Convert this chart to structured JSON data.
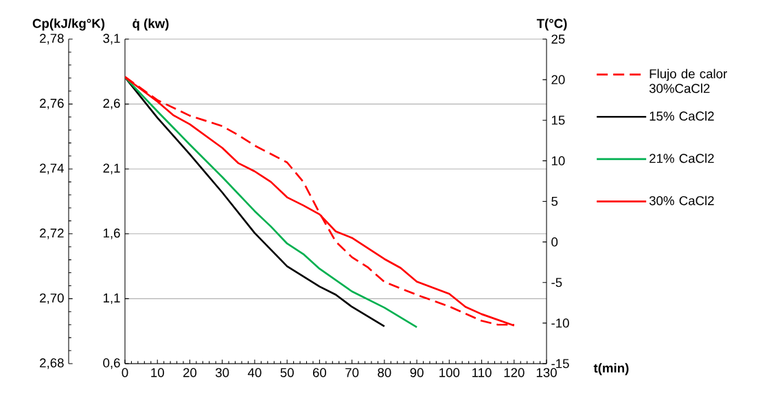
{
  "chart_data": {
    "type": "line",
    "xlabel": "t(min)",
    "ylabel": "q̇ (kw)",
    "y2label": "T(°C)",
    "y3label": "Cp(kJ/kg°K)",
    "xlim": [
      0,
      130
    ],
    "xticks": [
      0,
      10,
      20,
      30,
      40,
      50,
      60,
      70,
      80,
      90,
      100,
      110,
      120,
      130
    ],
    "ylim": [
      0.6,
      3.1
    ],
    "yticks": [
      {
        "value": 0.6,
        "label": "0,6"
      },
      {
        "value": 1.1,
        "label": "1,1"
      },
      {
        "value": 1.6,
        "label": "1,6"
      },
      {
        "value": 2.1,
        "label": "2,1"
      },
      {
        "value": 2.6,
        "label": "2,6"
      },
      {
        "value": 3.1,
        "label": "3,1"
      }
    ],
    "y2lim": [
      -15,
      25
    ],
    "y2ticks": [
      -15,
      -10,
      -5,
      0,
      5,
      10,
      15,
      20,
      25
    ],
    "y3lim": [
      2.68,
      2.78
    ],
    "y3ticks": [
      {
        "value": 2.68,
        "label": "2,68"
      },
      {
        "value": 2.7,
        "label": "2,70"
      },
      {
        "value": 2.72,
        "label": "2,72"
      },
      {
        "value": 2.74,
        "label": "2,74"
      },
      {
        "value": 2.76,
        "label": "2,76"
      },
      {
        "value": 2.78,
        "label": "2,78"
      }
    ],
    "grid": "y",
    "legend": "right",
    "series": [
      {
        "name": "Flujo de calor 30%CaCl2",
        "color": "#ff0000",
        "line_style": "dashed",
        "x": [
          0,
          10,
          20,
          30,
          35,
          40,
          50,
          55,
          60,
          65,
          70,
          75,
          80,
          90,
          100,
          110,
          115,
          120
        ],
        "values": [
          2.81,
          2.63,
          2.51,
          2.43,
          2.36,
          2.28,
          2.15,
          2.0,
          1.76,
          1.54,
          1.42,
          1.34,
          1.23,
          1.13,
          1.04,
          0.93,
          0.9,
          0.9
        ]
      },
      {
        "name": "15% CaCl2",
        "color": "#000000",
        "line_style": "solid",
        "axis": "y2",
        "x": [
          0,
          10,
          20,
          30,
          40,
          50,
          60,
          65,
          70,
          80
        ],
        "values": [
          20.3,
          15.3,
          10.8,
          6.1,
          1.1,
          -3.0,
          -5.5,
          -6.5,
          -8.0,
          -10.4
        ]
      },
      {
        "name": "21% CaCl2",
        "color": "#00b050",
        "line_style": "solid",
        "axis": "y2",
        "x": [
          0,
          10,
          20,
          30,
          40,
          45,
          50,
          55,
          60,
          70,
          80,
          90
        ],
        "values": [
          20.3,
          16.1,
          12.0,
          8.0,
          3.8,
          1.9,
          -0.2,
          -1.5,
          -3.3,
          -6.1,
          -8.1,
          -10.5
        ]
      },
      {
        "name": "30% CaCl2",
        "color": "#ff0000",
        "line_style": "solid",
        "axis": "y2",
        "x": [
          0,
          10,
          15,
          20,
          30,
          35,
          40,
          45,
          50,
          55,
          60,
          65,
          70,
          80,
          85,
          90,
          100,
          105,
          110,
          120
        ],
        "values": [
          20.3,
          17.3,
          15.6,
          14.5,
          11.6,
          9.7,
          8.7,
          7.4,
          5.5,
          4.5,
          3.4,
          1.3,
          0.5,
          -2.1,
          -3.2,
          -4.9,
          -6.4,
          -8.0,
          -8.9,
          -10.3
        ]
      }
    ]
  }
}
